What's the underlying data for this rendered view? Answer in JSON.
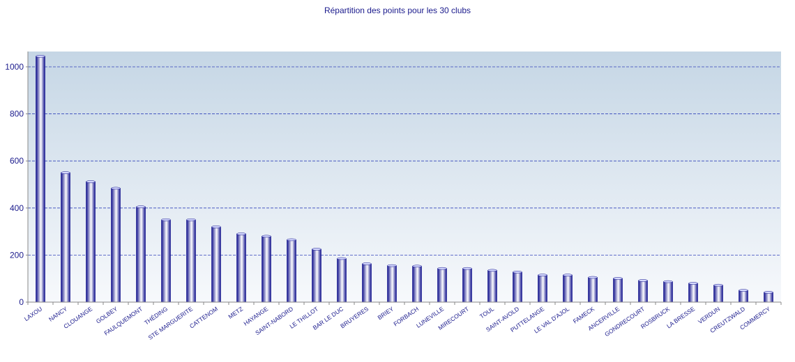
{
  "chart_data": {
    "type": "bar",
    "title": "Répartition des points pour les 30 clubs",
    "xlabel": "",
    "ylabel": "",
    "ylim": [
      0,
      1065
    ],
    "yticks": [
      0,
      200,
      400,
      600,
      800,
      1000
    ],
    "grid": true,
    "legend": "none",
    "categories": [
      "LAXOU",
      "NANCY",
      "CLOUANGE",
      "GOLBEY",
      "FAULQUEMONT",
      "THÉDING",
      "STE MARGUERITE",
      "CATTENOM",
      "METZ",
      "HAYANGE",
      "SAINT-NABORD",
      "LE THILLOT",
      "BAR LE DUC",
      "BRUYERES",
      "BRIEY",
      "FORBACH",
      "LUNEVILLE",
      "MIRECOURT",
      "TOUL",
      "SAINT-AVOLD",
      "PUTTELANGE",
      "LE VAL D'AJOL",
      "FAMECK",
      "ANCERVILLE",
      "GONDRECOURT",
      "ROSBRUCK",
      "LA BRESSE",
      "VERDUN",
      "CREUTZWALD",
      "COMMERCY"
    ],
    "values": [
      1045,
      550,
      512,
      484,
      405,
      350,
      350,
      320,
      290,
      280,
      265,
      225,
      185,
      163,
      155,
      153,
      143,
      143,
      135,
      128,
      115,
      115,
      105,
      101,
      92,
      87,
      80,
      72,
      50,
      42
    ]
  },
  "colors": {
    "text": "#1a1a8c",
    "grid": "#3344bb",
    "plot_top": "#c5d6e5",
    "plot_bottom": "#f7f9fc",
    "bar_dark": "#10108c",
    "bar_light": "#ffffff",
    "axis": "#888888"
  }
}
